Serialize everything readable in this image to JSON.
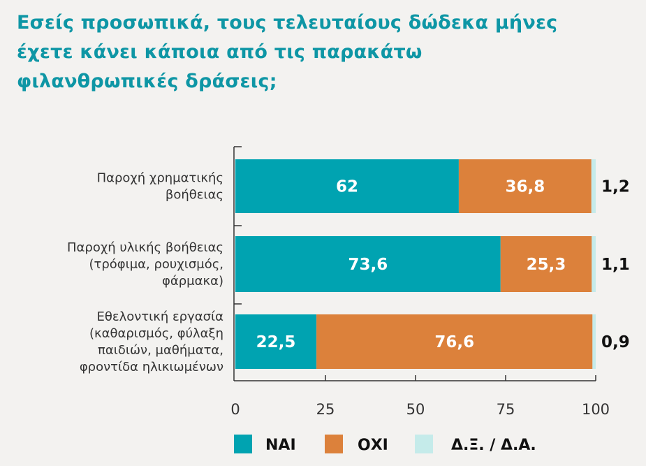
{
  "chart_data": {
    "type": "bar",
    "orientation": "horizontal",
    "stacked": true,
    "title": "Εσείς προσωπικά, τους τελευταίους δώδεκα μήνες έχετε κάνει κάποια από τις παρακάτω φιλανθρωπικές δράσεις;",
    "categories": [
      [
        "Παροχή χρηματικής",
        "βοήθειας"
      ],
      [
        "Παροχή υλικής βοήθειας",
        "(τρόφιμα, ρουχισμός,",
        "φάρμακα)"
      ],
      [
        "Εθελοντική εργασία",
        "(καθαρισμός, φύλαξη",
        "παιδιών, μαθήματα,",
        "φροντίδα ηλικιωμένων"
      ]
    ],
    "series": [
      {
        "name": "ΝΑΙ",
        "color": "#00a3b1",
        "values": [
          62,
          73.6,
          22.5
        ],
        "labels": [
          "62",
          "73,6",
          "22,5"
        ]
      },
      {
        "name": "ΟΧΙ",
        "color": "#dc813b",
        "values": [
          36.8,
          25.3,
          76.6
        ],
        "labels": [
          "36,8",
          "25,3",
          "76,6"
        ]
      },
      {
        "name": "Δ.Ξ. / Δ.Α.",
        "color": "#c5ebea",
        "values": [
          1.2,
          1.1,
          0.9
        ],
        "labels": [
          "1,2",
          "1,1",
          "0,9"
        ]
      }
    ],
    "xlim": [
      0,
      100
    ],
    "xticks": [
      "0",
      "25",
      "50",
      "75",
      "100"
    ],
    "grid": false,
    "legend": "bottom"
  }
}
